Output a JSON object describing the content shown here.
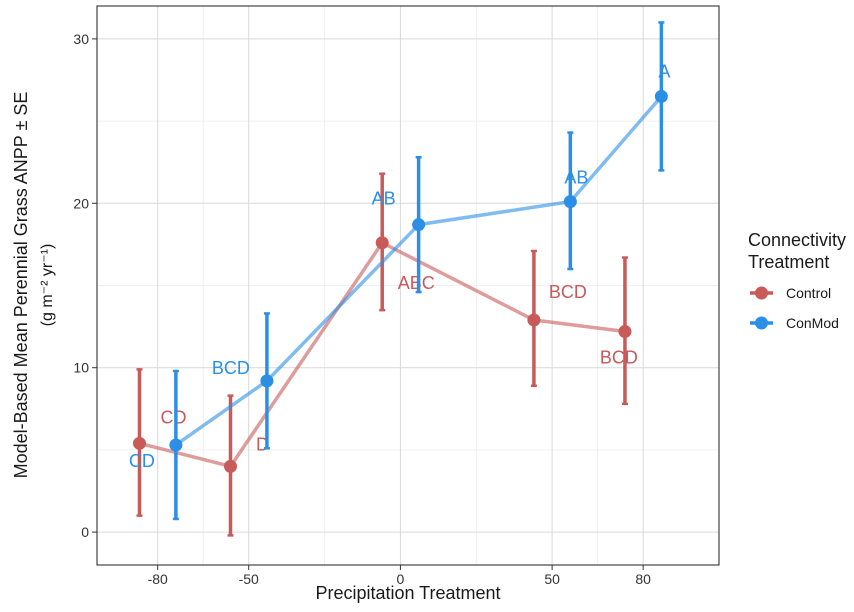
{
  "chart_data": {
    "type": "line",
    "xlabel": "Precipitation Treatment",
    "ylabel_line1": "Model-Based Mean Perennial Grass ANPP ± SE",
    "ylabel_line2": "(g m⁻² yr⁻¹)",
    "xlim": [
      -100,
      105
    ],
    "ylim": [
      -2,
      32
    ],
    "x_ticks": [
      -80,
      -50,
      0,
      50,
      80
    ],
    "x_tick_labels": [
      "-80",
      "-50",
      "0",
      "50",
      "80"
    ],
    "y_ticks": [
      0,
      10,
      20,
      30
    ],
    "y_tick_labels": [
      "0",
      "10",
      "20",
      "30"
    ],
    "grid": true,
    "legend": {
      "title_line1": "Connectivity",
      "title_line2": "Treatment",
      "placement": "right"
    },
    "series": [
      {
        "name": "Control",
        "color": "#c85a5a",
        "x": [
          -86,
          -56,
          -6,
          44,
          74
        ],
        "y": [
          5.4,
          4.0,
          17.6,
          12.9,
          12.2
        ],
        "err_low": [
          1.0,
          -0.2,
          13.5,
          8.9,
          7.8
        ],
        "err_high": [
          9.9,
          8.3,
          21.8,
          17.1,
          16.7
        ],
        "labels": [
          "CD",
          "D",
          "ABC",
          "BCD",
          "BCD"
        ]
      },
      {
        "name": "ConMod",
        "color": "#2b8fe6",
        "x": [
          -74,
          -44,
          6,
          56,
          86
        ],
        "y": [
          5.3,
          9.2,
          18.7,
          20.1,
          26.5
        ],
        "err_low": [
          0.8,
          5.1,
          14.6,
          16.0,
          22.0
        ],
        "err_high": [
          9.8,
          13.3,
          22.8,
          24.3,
          31.0
        ],
        "labels": [
          "CD",
          "BCD",
          "AB",
          "AB",
          "A"
        ]
      }
    ]
  }
}
